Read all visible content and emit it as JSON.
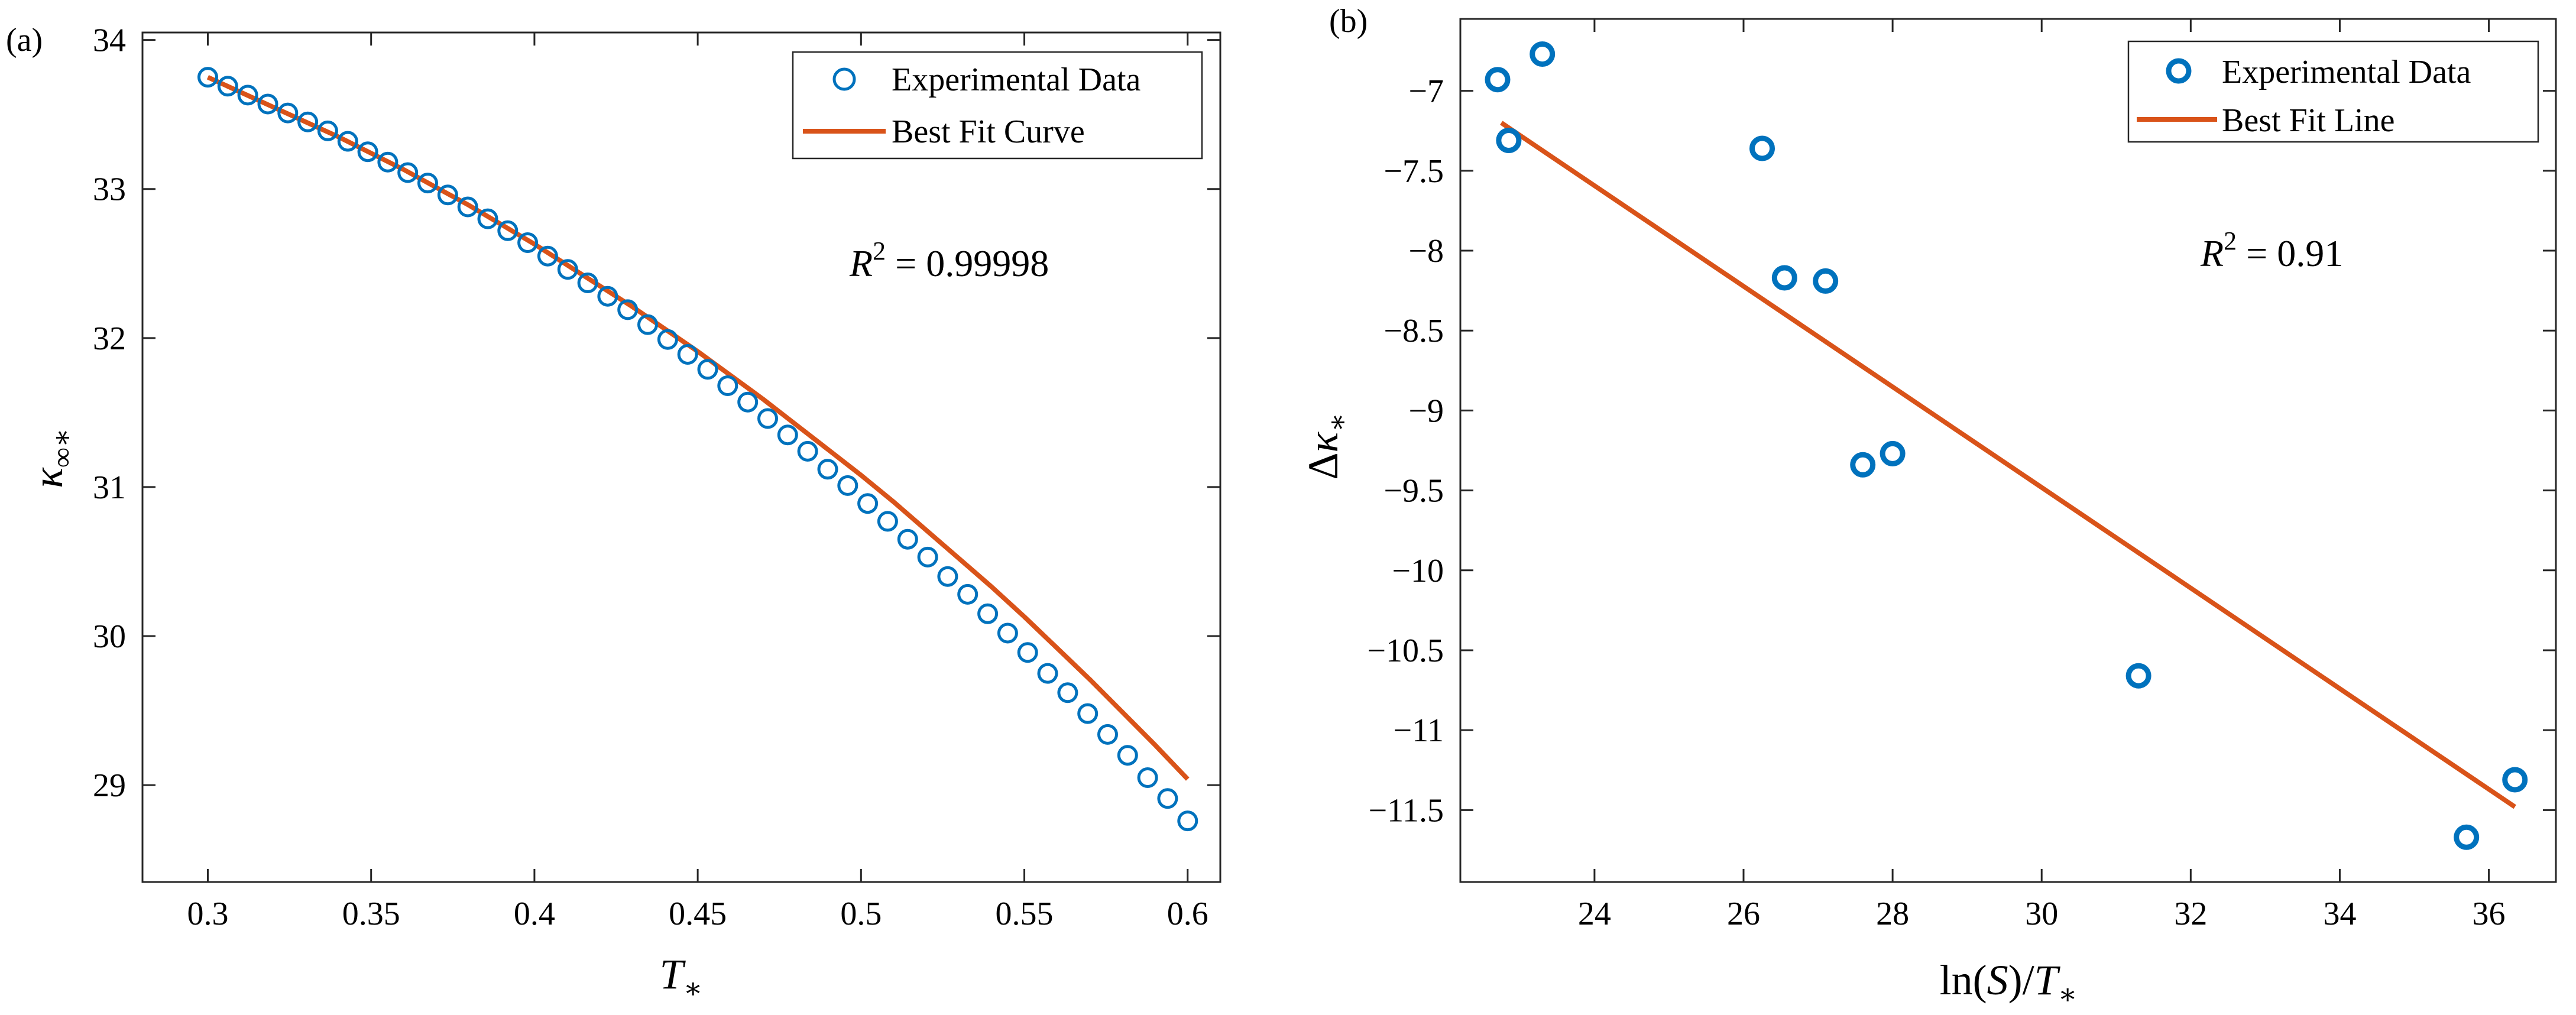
{
  "panels": [
    {
      "panel_label": "(a)",
      "chart_data": {
        "type": "line",
        "xlabel": "T_*",
        "ylabel": "κ_∞*",
        "xlim": [
          0.28,
          0.61
        ],
        "ylim": [
          28.35,
          34.05
        ],
        "xticks": [
          0.3,
          0.35,
          0.4,
          0.45,
          0.5,
          0.55,
          0.6
        ],
        "xtick_labels": [
          "0.3",
          "0.35",
          "0.4",
          "0.45",
          "0.5",
          "0.55",
          "0.6"
        ],
        "yticks": [
          29,
          30,
          31,
          32,
          33,
          34
        ],
        "ytick_labels": [
          "29",
          "30",
          "31",
          "32",
          "33",
          "34"
        ],
        "legend_position": "top-right",
        "annotation": "R^2 = 0.99998",
        "series": [
          {
            "name": "Experimental Data",
            "kind": "scatter",
            "color": "#0072BD",
            "x": [
              0.3,
              0.30612,
              0.31224,
              0.31837,
              0.32449,
              0.33061,
              0.33673,
              0.34286,
              0.34898,
              0.3551,
              0.36122,
              0.36735,
              0.37347,
              0.37959,
              0.38571,
              0.39184,
              0.39796,
              0.40408,
              0.4102,
              0.41633,
              0.42245,
              0.42857,
              0.43469,
              0.44082,
              0.44694,
              0.45306,
              0.45918,
              0.46531,
              0.47143,
              0.47755,
              0.48367,
              0.4898,
              0.49592,
              0.50204,
              0.50816,
              0.51429,
              0.52041,
              0.52653,
              0.53265,
              0.53878,
              0.5449,
              0.55102,
              0.55714,
              0.56327,
              0.56939,
              0.57551,
              0.58163,
              0.58776,
              0.59388,
              0.6
            ],
            "y": [
              33.75,
              33.69,
              33.63,
              33.57,
              33.51,
              33.45,
              33.39,
              33.32,
              33.25,
              33.18,
              33.11,
              33.04,
              32.96,
              32.88,
              32.8,
              32.72,
              32.64,
              32.55,
              32.46,
              32.37,
              32.28,
              32.19,
              32.09,
              31.99,
              31.89,
              31.79,
              31.68,
              31.57,
              31.46,
              31.35,
              31.24,
              31.12,
              31.01,
              30.89,
              30.77,
              30.65,
              30.53,
              30.4,
              30.28,
              30.15,
              30.02,
              29.89,
              29.75,
              29.62,
              29.48,
              29.34,
              29.2,
              29.05,
              28.91,
              28.76
            ]
          },
          {
            "name": "Best Fit Curve",
            "kind": "line",
            "color": "#D95319",
            "x": [
              0.3,
              0.31,
              0.32,
              0.33,
              0.34,
              0.35,
              0.36,
              0.37,
              0.38,
              0.39,
              0.4,
              0.41,
              0.42,
              0.43,
              0.44,
              0.45,
              0.46,
              0.47,
              0.48,
              0.49,
              0.5,
              0.51,
              0.52,
              0.53,
              0.54,
              0.55,
              0.56,
              0.57,
              0.58,
              0.59,
              0.6
            ],
            "y": [
              33.75,
              33.65,
              33.55,
              33.45,
              33.35,
              33.24,
              33.13,
              33.01,
              32.89,
              32.76,
              32.63,
              32.49,
              32.35,
              32.21,
              32.06,
              31.91,
              31.75,
              31.59,
              31.42,
              31.25,
              31.08,
              30.9,
              30.71,
              30.52,
              30.33,
              30.13,
              29.92,
              29.71,
              29.49,
              29.27,
              29.04
            ]
          }
        ]
      }
    },
    {
      "panel_label": "(b)",
      "chart_data": {
        "type": "scatter",
        "xlabel": "ln(S)/T_*",
        "ylabel": "Δκ_*",
        "xlim": [
          22.2,
          36.9
        ],
        "ylim": [
          -11.95,
          -6.55
        ],
        "xticks": [
          24,
          26,
          28,
          30,
          32,
          34,
          36
        ],
        "xtick_labels": [
          "24",
          "26",
          "28",
          "30",
          "32",
          "34",
          "36"
        ],
        "yticks": [
          -7,
          -7.5,
          -8,
          -8.5,
          -9,
          -9.5,
          -10,
          -10.5,
          -11,
          -11.5
        ],
        "ytick_labels": [
          "−7",
          "−7.5",
          "−8",
          "−8.5",
          "−9",
          "−9.5",
          "−10",
          "−10.5",
          "−11",
          "−11.5"
        ],
        "legend_position": "top-right",
        "annotation": "R^2 = 0.91",
        "series": [
          {
            "name": "Experimental Data",
            "kind": "scatter",
            "color": "#0072BD",
            "x": [
              22.7,
              22.85,
              23.3,
              26.25,
              26.55,
              27.1,
              27.6,
              28.0,
              31.3,
              35.7,
              36.35
            ],
            "y": [
              -6.93,
              -7.31,
              -6.77,
              -7.36,
              -8.17,
              -8.19,
              -9.34,
              -9.27,
              -10.66,
              -11.67,
              -11.31
            ]
          },
          {
            "name": "Best Fit Line",
            "kind": "line",
            "color": "#D95319",
            "x": [
              22.75,
              36.35
            ],
            "y": [
              -7.2,
              -11.48
            ]
          }
        ]
      }
    }
  ]
}
